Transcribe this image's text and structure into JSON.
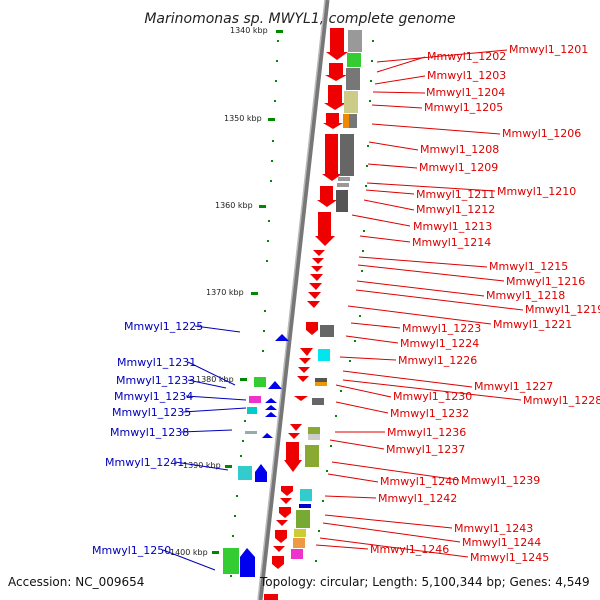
{
  "title": "Marinomonas sp. MWYL1, complete genome",
  "accession_label": "Accession: NC_009654",
  "summary_label": "Topology: circular; Length: 5,100,344 bp; Genes: 4,549",
  "scale_ticks": [
    "1340 kbp",
    "1350 kbp",
    "1360 kbp",
    "1370 kbp",
    "1380 kbp",
    "1390 kbp",
    "1400 kbp"
  ],
  "colors": {
    "forward_gene": "#ee0000",
    "reverse_gene": "#0000ee",
    "backbone": "#888888",
    "tick": "#008800"
  },
  "forward_genes": [
    "Mmwyl1_1201",
    "Mmwyl1_1202",
    "Mmwyl1_1203",
    "Mmwyl1_1204",
    "Mmwyl1_1205",
    "Mmwyl1_1206",
    "Mmwyl1_1208",
    "Mmwyl1_1209",
    "Mmwyl1_1210",
    "Mmwyl1_1211",
    "Mmwyl1_1212",
    "Mmwyl1_1213",
    "Mmwyl1_1214",
    "Mmwyl1_1215",
    "Mmwyl1_1216",
    "Mmwyl1_1218",
    "Mmwyl1_1219",
    "Mmwyl1_1221",
    "Mmwyl1_1223",
    "Mmwyl1_1224",
    "Mmwyl1_1226",
    "Mmwyl1_1227",
    "Mmwyl1_1228",
    "Mmwyl1_1230",
    "Mmwyl1_1232",
    "Mmwyl1_1236",
    "Mmwyl1_1237",
    "Mmwyl1_1239",
    "Mmwyl1_1240",
    "Mmwyl1_1242",
    "Mmwyl1_1243",
    "Mmwyl1_1244",
    "Mmwyl1_1245",
    "Mmwyl1_1246"
  ],
  "reverse_genes": [
    "Mmwyl1_1225",
    "Mmwyl1_1231",
    "Mmwyl1_1233",
    "Mmwyl1_1234",
    "Mmwyl1_1235",
    "Mmwyl1_1238",
    "Mmwyl1_1241",
    "Mmwyl1_1250"
  ]
}
